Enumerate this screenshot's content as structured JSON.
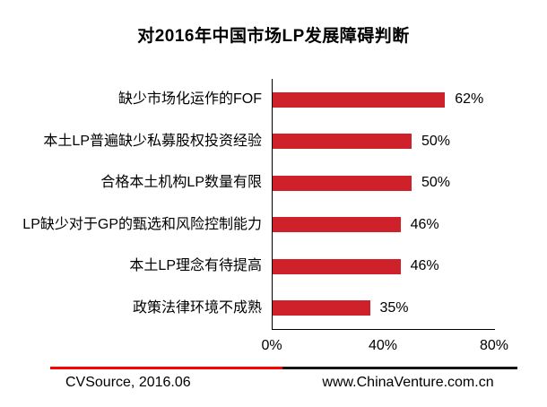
{
  "title": "对2016年中国市场LP发展障碍判断",
  "chart_data": {
    "type": "bar",
    "orientation": "horizontal",
    "title": "对2016年中国市场LP发展障碍判断",
    "categories": [
      "缺少市场化运作的FOF",
      "本土LP普遍缺少私募股权投资经验",
      "合格本土机构LP数量有限",
      "LP缺少对于GP的甄选和风险控制能力",
      "本土LP理念有待提高",
      "政策法律环境不成熟"
    ],
    "values": [
      62,
      50,
      50,
      46,
      46,
      35
    ],
    "value_labels": [
      "62%",
      "50%",
      "50%",
      "46%",
      "46%",
      "35%"
    ],
    "xlabel": "",
    "ylabel": "",
    "xlim": [
      0,
      80
    ],
    "x_ticks": [
      {
        "label": "0%",
        "value": 0
      },
      {
        "label": "40%",
        "value": 40
      },
      {
        "label": "80%",
        "value": 80
      }
    ],
    "grid": false,
    "legend": false,
    "bar_color": "#CE2129"
  },
  "footer": {
    "left_text": "CVSource, 2016.06",
    "right_text": "www.ChinaVenture.com.cn"
  },
  "colors": {
    "bar": "#CE2129",
    "axis": "#000000",
    "text": "#000000",
    "footer_line_red": "#FF0000",
    "footer_line_black": "#141414",
    "background": "#FFFFFF"
  }
}
